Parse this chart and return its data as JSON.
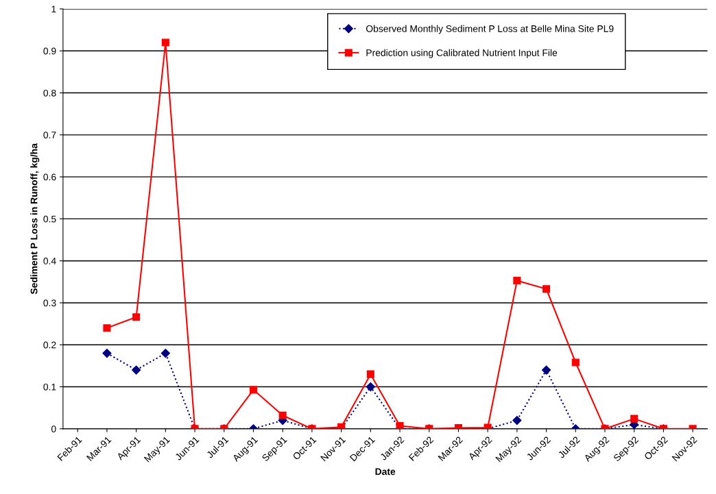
{
  "chart_data": {
    "type": "line",
    "xlabel": "Date",
    "ylabel": "Sediment P Loss in Runoff, kg/ha",
    "categories": [
      "Feb-91",
      "Mar-91",
      "Apr-91",
      "May-91",
      "Jun-91",
      "Jul-91",
      "Aug-91",
      "Sep-91",
      "Oct-91",
      "Nov-91",
      "Dec-91",
      "Jan-92",
      "Feb-92",
      "Mar-92",
      "Apr-92",
      "May-92",
      "Jun-92",
      "Jul-92",
      "Aug-92",
      "Sep-92",
      "Oct-92",
      "Nov-92"
    ],
    "series": [
      {
        "name": "Observed Monthly Sediment P Loss at Belle Mina Site PL9",
        "color": "#000080",
        "marker": "diamond",
        "line_style": "dotted",
        "values": [
          null,
          0.18,
          0.14,
          0.18,
          0,
          0,
          0,
          0.02,
          0,
          0,
          0.1,
          0,
          0,
          0,
          0,
          0.02,
          0.14,
          0,
          0,
          0.01,
          0,
          null
        ]
      },
      {
        "name": "Prediction using Calibrated Nutrient Input File",
        "color": "#ff0000",
        "marker": "square",
        "line_style": "solid",
        "values": [
          null,
          0.24,
          0.266,
          0.92,
          0,
          0,
          0.093,
          0.032,
          0,
          0.004,
          0.13,
          0.007,
          0,
          0.002,
          0.003,
          0.353,
          0.333,
          0.158,
          0,
          0.024,
          0,
          0
        ]
      }
    ],
    "ylim": [
      0,
      1
    ],
    "yticks": [
      0,
      0.1,
      0.2,
      0.3,
      0.4,
      0.5,
      0.6,
      0.7,
      0.8,
      0.9,
      1
    ],
    "grid": "y",
    "legend": "top right"
  }
}
